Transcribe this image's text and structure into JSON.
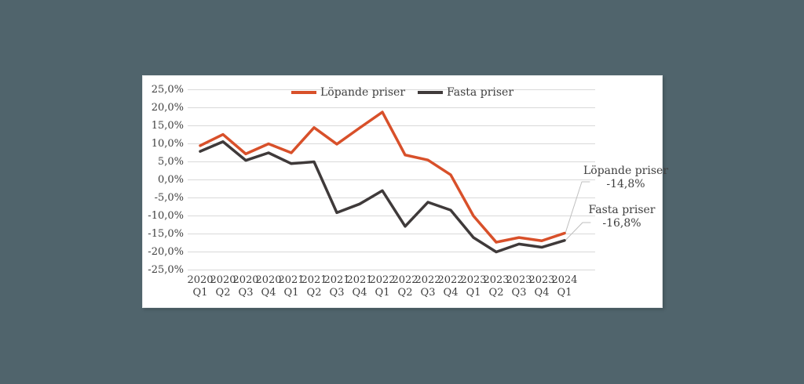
{
  "page": {
    "background_color": "#50646C",
    "card_color": "#FFFFFF",
    "text_color": "#3F3F3F",
    "grid_color": "#D9D9D9",
    "leader_line_color": "#BFBFBF"
  },
  "chart_data": {
    "type": "line",
    "title": "",
    "categories": [
      "2020 Q1",
      "2020 Q2",
      "2020 Q3",
      "2020 Q4",
      "2021 Q1",
      "2021 Q2",
      "2021 Q3",
      "2021 Q4",
      "2022 Q1",
      "2022 Q2",
      "2022 Q3",
      "2022 Q4",
      "2023 Q1",
      "2023 Q2",
      "2023 Q3",
      "2023 Q4",
      "2024 Q1"
    ],
    "series": [
      {
        "name": "Löpande priser",
        "color": "#D8502A",
        "values": [
          9.5,
          12.6,
          7.2,
          10.0,
          7.5,
          14.5,
          9.9,
          14.4,
          18.8,
          6.9,
          5.5,
          1.4,
          -10.0,
          -17.3,
          -16.0,
          -16.9,
          -14.8
        ]
      },
      {
        "name": "Fasta priser",
        "color": "#3F3A3A",
        "values": [
          7.9,
          10.6,
          5.4,
          7.5,
          4.5,
          5.0,
          -9.1,
          -6.7,
          -3.0,
          -12.9,
          -6.2,
          -8.4,
          -16.0,
          -20.0,
          -17.8,
          -18.7,
          -16.8
        ]
      }
    ],
    "ylim": [
      -25,
      25
    ],
    "ytick_step": 5,
    "ytick_labels": [
      "25,0%",
      "20,0%",
      "15,0%",
      "10,0%",
      "5,0%",
      "0,0%",
      "-5,0%",
      "-10,0%",
      "-15,0%",
      "-20,0%",
      "-25,0%"
    ],
    "grid": "horizontal",
    "legend_position": "top-center",
    "xlabel": "",
    "ylabel": ""
  },
  "annotations": [
    {
      "label": "Löpande priser",
      "value": "-14,8%"
    },
    {
      "label": "Fasta priser",
      "value": "-16,8%"
    }
  ]
}
